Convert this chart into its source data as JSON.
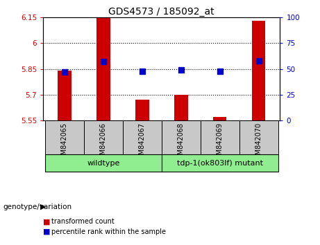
{
  "title": "GDS4573 / 185092_at",
  "categories": [
    "GSM842065",
    "GSM842066",
    "GSM842067",
    "GSM842068",
    "GSM842069",
    "GSM842070"
  ],
  "red_values": [
    5.84,
    6.15,
    5.67,
    5.7,
    5.57,
    6.13
  ],
  "blue_values": [
    47,
    57,
    48,
    49,
    48,
    58
  ],
  "ylim_left": [
    5.55,
    6.15
  ],
  "ylim_right": [
    0,
    100
  ],
  "yticks_left": [
    5.55,
    5.7,
    5.85,
    6.0,
    6.15
  ],
  "yticks_right": [
    0,
    25,
    50,
    75,
    100
  ],
  "ytick_labels_left": [
    "5.55",
    "5.7",
    "5.85",
    "6",
    "6.15"
  ],
  "ytick_labels_right": [
    "0",
    "25",
    "50",
    "75",
    "100"
  ],
  "hlines": [
    5.85,
    5.7,
    6.0
  ],
  "wildtype_label": "wildtype",
  "mutant_label": "tdp-1(ok803lf) mutant",
  "genotype_label": "genotype/variation",
  "legend_red": "transformed count",
  "legend_blue": "percentile rank within the sample",
  "bar_color": "#cc0000",
  "dot_color": "#0000cc",
  "green_color": "#90ee90",
  "grey_color": "#c8c8c8",
  "tick_color_left": "#cc0000",
  "tick_color_right": "#0000cc",
  "bar_width": 0.35,
  "dot_size": 30
}
